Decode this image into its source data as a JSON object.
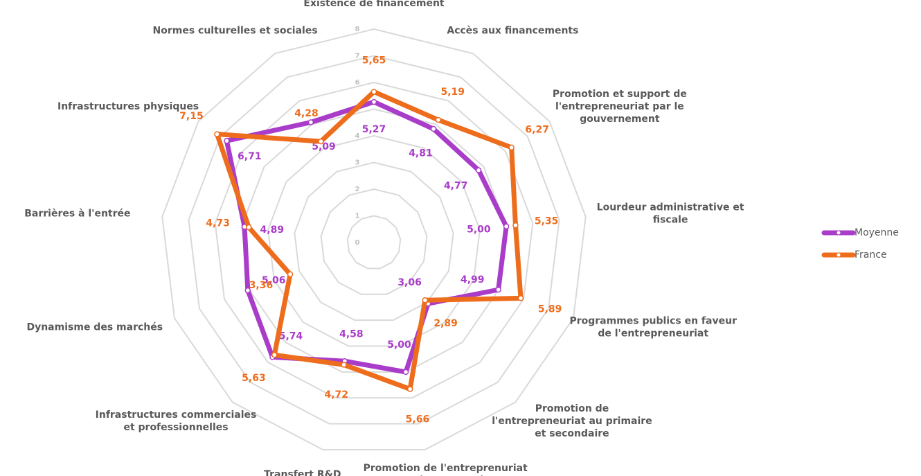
{
  "chart_data": {
    "type": "radar",
    "categories": [
      "Existence de financement",
      "Accès aux financements",
      "Promotion et support de\nl'entrepreneuriat par le\ngouvernement",
      "Lourdeur administrative et\nfiscale",
      "Programmes publics en faveur\nde l'entrepreneuriat",
      "Promotion de\nl'entrepreneuriat au primaire\net secondaire",
      "Promotion de l'entreprenuriat\ndans les études supérieures",
      "Transfert R&D",
      "Infrastructures commerciales\net professionnelles",
      "Dynamisme des marchés",
      "Barrières à l'entrée",
      "Infrastructures physiques",
      "Normes culturelles et sociales"
    ],
    "series": [
      {
        "name": "Moyenne",
        "color": "#a93cc9",
        "values": [
          5.27,
          4.81,
          4.77,
          5.0,
          4.99,
          3.06,
          5.0,
          4.58,
          5.74,
          5.06,
          4.89,
          6.71,
          5.09
        ],
        "value_labels": [
          "5,27",
          "4,81",
          "4,77",
          "5,00",
          "4,99",
          "3,06",
          "5,00",
          "4,58",
          "5,74",
          "5,06",
          "4,89",
          "6,71",
          "5,09"
        ]
      },
      {
        "name": "France",
        "color": "#ed6d1d",
        "values": [
          5.65,
          5.19,
          6.27,
          5.35,
          5.89,
          2.89,
          5.66,
          4.72,
          5.63,
          3.36,
          4.73,
          7.15,
          4.28
        ],
        "value_labels": [
          "5,65",
          "5,19",
          "6,27",
          "5,35",
          "5,89",
          "2,89",
          "5,66",
          "4,72",
          "5,63",
          "3,36",
          "4,73",
          "7,15",
          "4,28"
        ]
      }
    ],
    "rlim": [
      0,
      8
    ],
    "rticks": [
      0,
      1,
      2,
      3,
      4,
      5,
      6,
      7,
      8
    ],
    "grid": true,
    "legend": "right"
  }
}
